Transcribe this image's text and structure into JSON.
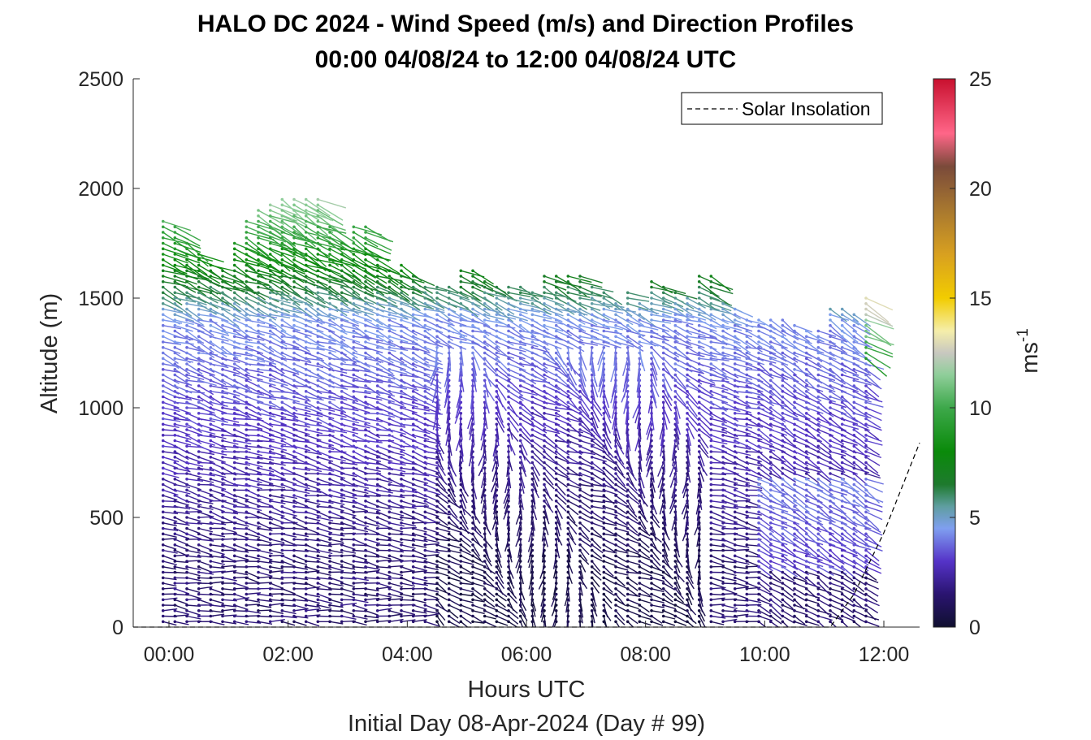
{
  "chart_data": {
    "type": "quiver",
    "title": "HALO DC 2024 - Wind Speed (m/s) and Direction Profiles",
    "subtitle": "00:00 04/08/24 to 12:00 04/08/24  UTC",
    "xlabel": "Hours UTC",
    "ylabel": "Altitude (m)",
    "footnote": "Initial Day 08-Apr-2024 (Day # 99)",
    "xlim": [
      -0.6,
      12.6
    ],
    "ylim": [
      0,
      2500
    ],
    "x_ticks": [
      0,
      2,
      4,
      6,
      8,
      10,
      12
    ],
    "x_tick_labels": [
      "00:00",
      "02:00",
      "04:00",
      "06:00",
      "08:00",
      "10:00",
      "12:00"
    ],
    "y_ticks": [
      0,
      500,
      1000,
      1500,
      2000,
      2500
    ],
    "y_tick_labels": [
      "0",
      "500",
      "1000",
      "1500",
      "2000",
      "2500"
    ],
    "legend": {
      "entries": [
        "Solar Insolation"
      ],
      "placement": "top-right"
    },
    "colorbar": {
      "label": "ms",
      "label_superscript": "-1",
      "range": [
        0,
        25
      ],
      "ticks": [
        0,
        5,
        10,
        15,
        20,
        25
      ],
      "tick_labels": [
        "0",
        "5",
        "10",
        "15",
        "20",
        "25"
      ],
      "stops": [
        {
          "v": 0,
          "c": "#101030"
        },
        {
          "v": 1.5,
          "c": "#2a1470"
        },
        {
          "v": 3,
          "c": "#5533c8"
        },
        {
          "v": 4.5,
          "c": "#7f9ff0"
        },
        {
          "v": 5.5,
          "c": "#5f9ea0"
        },
        {
          "v": 6.5,
          "c": "#1e7a2e"
        },
        {
          "v": 8,
          "c": "#0a8a0a"
        },
        {
          "v": 10,
          "c": "#3da84a"
        },
        {
          "v": 11.5,
          "c": "#8fce9a"
        },
        {
          "v": 12.5,
          "c": "#c8c8c0"
        },
        {
          "v": 13.5,
          "c": "#f5eeaa"
        },
        {
          "v": 15,
          "c": "#f2cc00"
        },
        {
          "v": 17,
          "c": "#d8a020"
        },
        {
          "v": 19,
          "c": "#a8782f"
        },
        {
          "v": 21,
          "c": "#7a4a3a"
        },
        {
          "v": 22.5,
          "c": "#ff6688"
        },
        {
          "v": 25,
          "c": "#c8102e"
        }
      ]
    },
    "series": [
      {
        "name": "Solar Insolation",
        "style": "dashed",
        "color": "#000000",
        "x": [
          -0.6,
          11.1,
          11.5,
          12.0,
          12.6
        ],
        "y": [
          0,
          0,
          150,
          430,
          840
        ]
      }
    ],
    "wind_profiles": {
      "profile_times_h": [
        -0.1,
        0.1,
        0.3,
        0.5,
        0.7,
        0.9,
        1.1,
        1.3,
        1.5,
        1.7,
        1.9,
        2.1,
        2.3,
        2.5,
        2.7,
        2.9,
        3.1,
        3.3,
        3.5,
        3.7,
        3.9,
        4.1,
        4.3,
        4.5,
        4.7,
        4.9,
        5.1,
        5.3,
        5.5,
        5.7,
        5.9,
        6.1,
        6.3,
        6.5,
        6.7,
        6.9,
        7.1,
        7.3,
        7.5,
        7.7,
        7.9,
        8.1,
        8.3,
        8.5,
        8.7,
        8.9,
        9.1,
        9.3,
        9.5,
        9.7,
        9.9,
        10.1,
        10.3,
        10.5,
        10.7,
        10.9,
        11.1,
        11.3,
        11.5,
        11.7
      ],
      "altitude_step_m": 25,
      "min_altitude_m": 25,
      "top_altitude_m": [
        1860,
        1840,
        1760,
        1700,
        1650,
        1640,
        1760,
        1870,
        1900,
        1930,
        1950,
        1950,
        1950,
        1950,
        1830,
        1770,
        1830,
        1830,
        1680,
        1640,
        1660,
        1620,
        1560,
        1550,
        1550,
        1630,
        1630,
        1580,
        1570,
        1560,
        1550,
        1530,
        1600,
        1620,
        1620,
        1600,
        1570,
        1530,
        1490,
        1530,
        1480,
        1590,
        1560,
        1540,
        1520,
        1620,
        1600,
        1480,
        1450,
        1410,
        1420,
        1420,
        1400,
        1390,
        1370,
        1350,
        1460,
        1460,
        1440,
        1500
      ],
      "example_profile_time_h": 0.0,
      "example_profile": [
        {
          "altitude_m": 100,
          "speed_ms": 2.0,
          "direction_deg": 240
        },
        {
          "altitude_m": 300,
          "speed_ms": 2.0,
          "direction_deg": 265
        },
        {
          "altitude_m": 500,
          "speed_ms": 2.5,
          "direction_deg": 270
        },
        {
          "altitude_m": 700,
          "speed_ms": 2.8,
          "direction_deg": 275
        },
        {
          "altitude_m": 900,
          "speed_ms": 3.2,
          "direction_deg": 285
        },
        {
          "altitude_m": 1100,
          "speed_ms": 4.2,
          "direction_deg": 290
        },
        {
          "altitude_m": 1300,
          "speed_ms": 4.8,
          "direction_deg": 295
        },
        {
          "altitude_m": 1500,
          "speed_ms": 6.5,
          "direction_deg": 300
        },
        {
          "altitude_m": 1700,
          "speed_ms": 8.0,
          "direction_deg": 300
        },
        {
          "altitude_m": 1850,
          "speed_ms": 8.5,
          "direction_deg": 290
        }
      ]
    }
  }
}
